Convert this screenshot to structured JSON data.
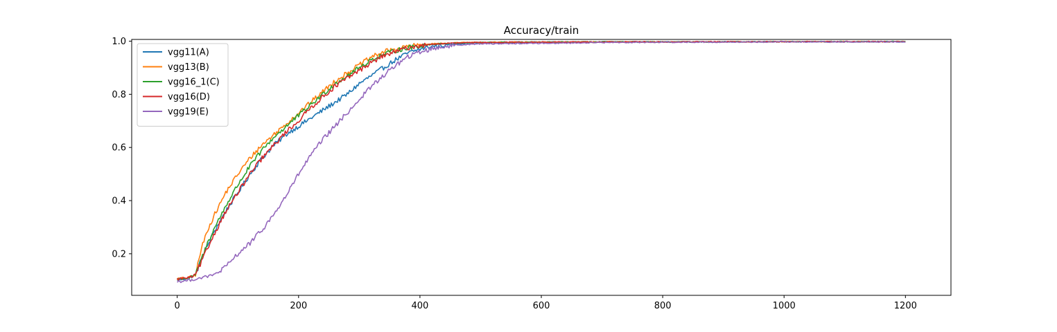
{
  "chart_data": {
    "type": "line",
    "title": "Accuracy/train",
    "xlabel": "",
    "ylabel": "",
    "xlim": [
      -75,
      1275
    ],
    "ylim": [
      0.0435,
      1.0065
    ],
    "xticks": [
      0,
      200,
      400,
      600,
      800,
      1000,
      1200
    ],
    "xtick_labels": [
      "0",
      "200",
      "400",
      "600",
      "800",
      "1000",
      "1200"
    ],
    "yticks": [
      0.2,
      0.4,
      0.6,
      0.8,
      1.0
    ],
    "ytick_labels": [
      "0.2",
      "0.4",
      "0.6",
      "0.8",
      "1.0"
    ],
    "grid": false,
    "legend": "top-left",
    "series": [
      {
        "name": "vgg11(A)",
        "color": "#1f77b4",
        "x": [
          0,
          20,
          30,
          40,
          50,
          60,
          80,
          100,
          120,
          140,
          160,
          180,
          200,
          220,
          240,
          260,
          280,
          300,
          320,
          340,
          360,
          380,
          400,
          420,
          440,
          460,
          480,
          500,
          550,
          600,
          700,
          800,
          1000,
          1200
        ],
        "y": [
          0.1,
          0.11,
          0.12,
          0.18,
          0.23,
          0.28,
          0.36,
          0.43,
          0.5,
          0.56,
          0.61,
          0.65,
          0.68,
          0.71,
          0.74,
          0.77,
          0.8,
          0.84,
          0.87,
          0.9,
          0.93,
          0.955,
          0.97,
          0.98,
          0.985,
          0.99,
          0.992,
          0.994,
          0.995,
          0.996,
          0.997,
          0.997,
          0.998,
          0.998
        ]
      },
      {
        "name": "vgg13(B)",
        "color": "#ff7f0e",
        "x": [
          0,
          20,
          30,
          40,
          50,
          60,
          80,
          100,
          120,
          140,
          160,
          180,
          200,
          220,
          240,
          260,
          280,
          300,
          320,
          340,
          360,
          380,
          400,
          420,
          440,
          460,
          500,
          550,
          600,
          700,
          800,
          1000,
          1200
        ],
        "y": [
          0.105,
          0.11,
          0.12,
          0.22,
          0.29,
          0.34,
          0.43,
          0.5,
          0.56,
          0.61,
          0.65,
          0.69,
          0.73,
          0.77,
          0.81,
          0.85,
          0.88,
          0.91,
          0.94,
          0.96,
          0.97,
          0.98,
          0.985,
          0.99,
          0.992,
          0.994,
          0.995,
          0.996,
          0.996,
          0.997,
          0.997,
          0.998,
          0.998
        ]
      },
      {
        "name": "vgg16_1(C)",
        "color": "#2ca02c",
        "x": [
          0,
          20,
          30,
          40,
          50,
          60,
          80,
          100,
          120,
          140,
          160,
          180,
          200,
          220,
          240,
          260,
          280,
          300,
          320,
          340,
          360,
          380,
          400,
          420,
          440,
          460,
          500,
          550,
          600,
          700,
          800,
          1000,
          1200
        ],
        "y": [
          0.105,
          0.11,
          0.12,
          0.18,
          0.24,
          0.29,
          0.38,
          0.46,
          0.53,
          0.59,
          0.64,
          0.68,
          0.72,
          0.76,
          0.8,
          0.84,
          0.87,
          0.9,
          0.93,
          0.95,
          0.965,
          0.975,
          0.983,
          0.988,
          0.991,
          0.993,
          0.995,
          0.996,
          0.996,
          0.997,
          0.997,
          0.998,
          0.998
        ]
      },
      {
        "name": "vgg16(D)",
        "color": "#d62728",
        "x": [
          0,
          20,
          30,
          40,
          50,
          60,
          80,
          100,
          120,
          140,
          160,
          180,
          200,
          220,
          240,
          260,
          280,
          300,
          320,
          340,
          360,
          380,
          400,
          420,
          440,
          460,
          500,
          550,
          600,
          700,
          800,
          1000,
          1200
        ],
        "y": [
          0.105,
          0.11,
          0.12,
          0.17,
          0.22,
          0.27,
          0.36,
          0.43,
          0.5,
          0.56,
          0.61,
          0.66,
          0.7,
          0.75,
          0.79,
          0.83,
          0.86,
          0.89,
          0.92,
          0.945,
          0.96,
          0.975,
          0.983,
          0.988,
          0.991,
          0.993,
          0.995,
          0.996,
          0.996,
          0.997,
          0.997,
          0.998,
          0.998
        ]
      },
      {
        "name": "vgg19(E)",
        "color": "#9467bd",
        "x": [
          0,
          20,
          40,
          60,
          80,
          100,
          120,
          140,
          160,
          180,
          200,
          220,
          240,
          260,
          280,
          300,
          320,
          340,
          360,
          380,
          400,
          420,
          440,
          460,
          480,
          500,
          550,
          600,
          650,
          700,
          800,
          1000,
          1200
        ],
        "y": [
          0.095,
          0.1,
          0.11,
          0.12,
          0.15,
          0.2,
          0.24,
          0.29,
          0.35,
          0.42,
          0.5,
          0.57,
          0.63,
          0.68,
          0.73,
          0.78,
          0.83,
          0.87,
          0.91,
          0.94,
          0.96,
          0.972,
          0.98,
          0.985,
          0.988,
          0.99,
          0.991,
          0.992,
          0.993,
          0.995,
          0.996,
          0.997,
          0.997
        ]
      }
    ]
  }
}
